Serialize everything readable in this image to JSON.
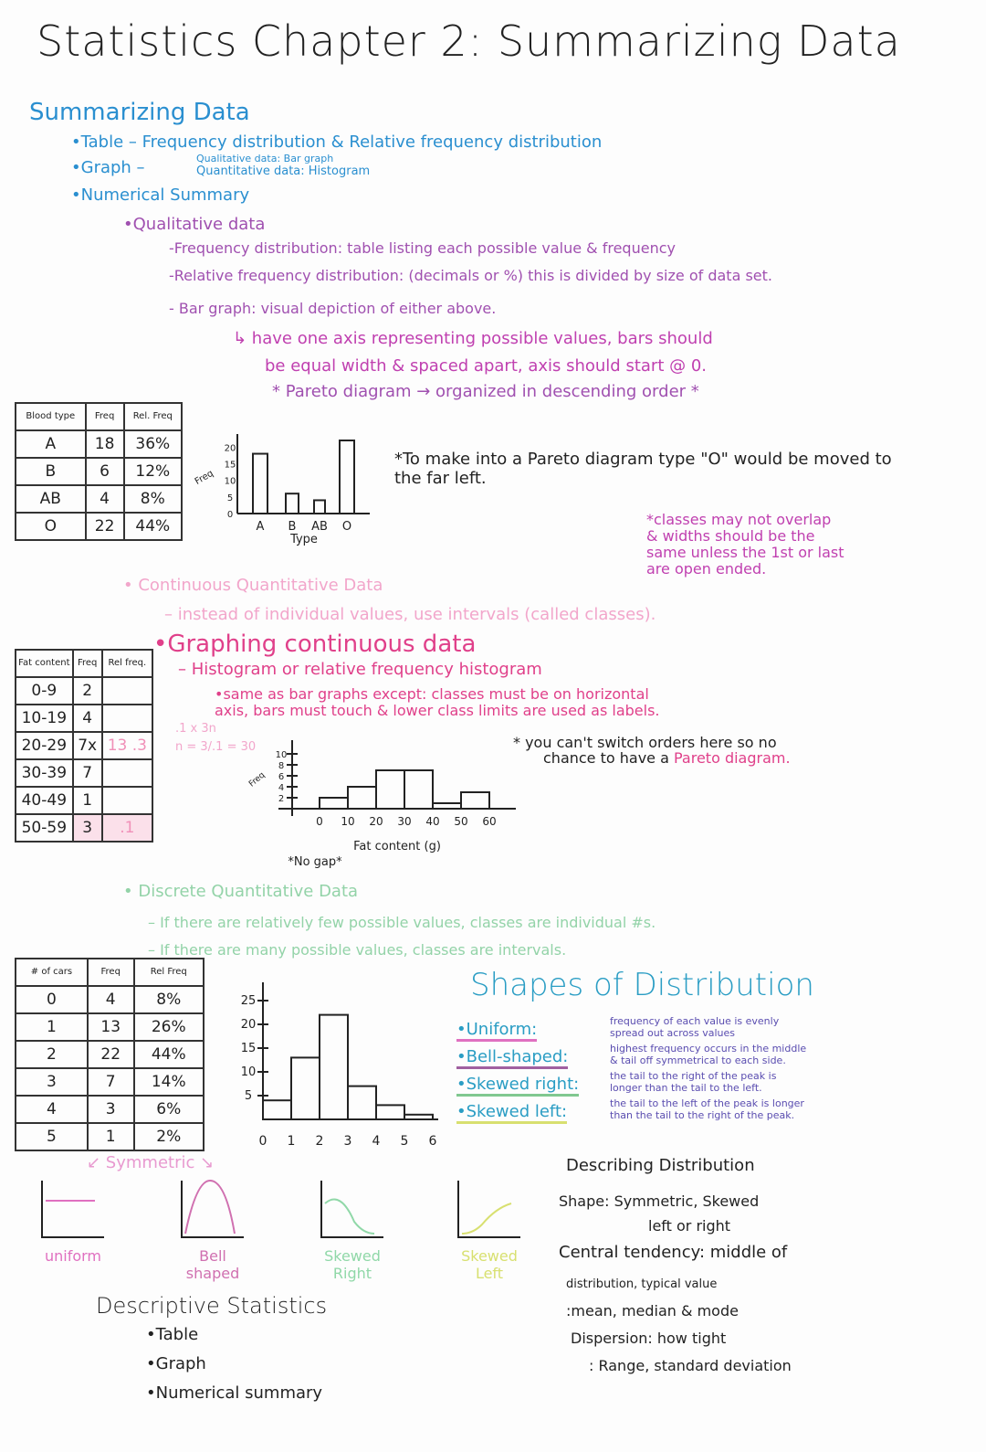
{
  "title": "Statistics Chapter 2: Summarizing Data",
  "summarizing": {
    "heading": "Summarizing Data",
    "table": "•Table – Frequency distribution & Relative frequency distribution",
    "graph": "•Graph –",
    "graph_qual": "Qualitative data: Bar graph",
    "graph_quant": "Quantitative data: Histogram",
    "numerical": "•Numerical Summary"
  },
  "qualitative": {
    "heading": "•Qualitative data",
    "freq": "-Frequency distribution: table listing each possible value & frequency",
    "rel": "-Relative frequency distribution: (decimals or %) this is divided by size of data set.",
    "bar": "- Bar graph: visual depiction of either above.",
    "note1": "↳ have one axis representing possible values, bars should",
    "note2": "be equal width & spaced apart, axis should start @ 0.",
    "pareto": "* Pareto diagram → organized in descending order *"
  },
  "blood_table": {
    "headers": [
      "Blood type",
      "Freq",
      "Rel. Freq"
    ],
    "rows": [
      [
        "A",
        "18",
        "36%"
      ],
      [
        "B",
        "6",
        "12%"
      ],
      [
        "AB",
        "4",
        "8%"
      ],
      [
        "O",
        "22",
        "44%"
      ]
    ]
  },
  "blood_chart": {
    "type": "bar",
    "categories": [
      "A",
      "B",
      "AB",
      "O"
    ],
    "values": [
      18,
      6,
      4,
      22
    ],
    "ylabel": "Freq",
    "xlabel": "Type",
    "yticks": [
      "0",
      "5",
      "10",
      "15",
      "20"
    ],
    "ylim": [
      0,
      22
    ]
  },
  "pareto_note": "*To make into a Pareto diagram type \"O\" would be moved to the far left.",
  "classes_note": [
    "*classes may not overlap",
    "& widths should be the",
    "same unless the 1st or last",
    "are open ended."
  ],
  "continuous": {
    "heading": "• Continuous Quantitative Data",
    "text": "– instead of individual values, use intervals (called classes)."
  },
  "graphing": {
    "heading": "•Graphing continuous data",
    "hist": "– Histogram or relative frequency histogram",
    "same1": "•same as bar graphs except: classes must be on horizontal",
    "same2": "axis, bars must touch & lower class limits are used as labels.",
    "calc1": ".1 x 3n",
    "calc2": "n = 3/.1 = 30",
    "switch1": "* you can't switch orders here so no",
    "switch2": "chance to have a",
    "switch_link": "Pareto diagram."
  },
  "fat_table": {
    "headers": [
      "Fat content",
      "Freq",
      "Rel freq."
    ],
    "rows": [
      [
        "0-9",
        "2",
        ""
      ],
      [
        "10-19",
        "4",
        ""
      ],
      [
        "20-29",
        "7x",
        "13 .3"
      ],
      [
        "30-39",
        "7",
        ""
      ],
      [
        "40-49",
        "1",
        ""
      ],
      [
        "50-59",
        "3",
        ".1"
      ]
    ]
  },
  "fat_chart": {
    "type": "bar",
    "categories": [
      "0",
      "10",
      "20",
      "30",
      "40",
      "50"
    ],
    "values": [
      2,
      4,
      7,
      7,
      1,
      3
    ],
    "xticks": [
      "0",
      "10",
      "20",
      "30",
      "40",
      "50",
      "60"
    ],
    "yticks": [
      "2",
      "4",
      "6",
      "8",
      "10"
    ],
    "ylabel": "Freq",
    "xlabel": "Fat content (g)",
    "ylim": [
      0,
      10
    ],
    "note": "*No gap*"
  },
  "discrete": {
    "heading": "• Discrete Quantitative Data",
    "few": "– If there are relatively few possible values, classes are individual #s.",
    "many": "– If there are many possible values, classes are intervals."
  },
  "cars_table": {
    "headers": [
      "# of cars",
      "Freq",
      "Rel Freq"
    ],
    "rows": [
      [
        "0",
        "4",
        "8%"
      ],
      [
        "1",
        "13",
        "26%"
      ],
      [
        "2",
        "22",
        "44%"
      ],
      [
        "3",
        "7",
        "14%"
      ],
      [
        "4",
        "3",
        "6%"
      ],
      [
        "5",
        "1",
        "2%"
      ]
    ]
  },
  "cars_chart": {
    "type": "bar",
    "categories": [
      "0",
      "1",
      "2",
      "3",
      "4",
      "5"
    ],
    "values": [
      4,
      13,
      22,
      7,
      3,
      1
    ],
    "xticks": [
      "0",
      "1",
      "2",
      "3",
      "4",
      "5",
      "6"
    ],
    "yticks": [
      "5",
      "10",
      "15",
      "20",
      "25"
    ],
    "ylim": [
      0,
      25
    ]
  },
  "shapes": {
    "heading": "Shapes of Distribution",
    "items": [
      {
        "name": "•Uniform:",
        "d1": "frequency of each value is evenly",
        "d2": "spread out across values",
        "color": "#e070c0"
      },
      {
        "name": "•Bell-shaped:",
        "d1": "highest frequency occurs in the middle",
        "d2": "& tail off symmetrical to each side.",
        "color": "#a060a0"
      },
      {
        "name": "•Skewed right:",
        "d1": "the tail to the right of the peak is",
        "d2": "longer than the tail to the left.",
        "color": "#80c890"
      },
      {
        "name": "•Skewed left:",
        "d1": "the tail to the left of the peak is longer",
        "d2": "than the tail to the right of the peak.",
        "color": "#d8e070"
      }
    ]
  },
  "symmetric": "↙ Symmetric ↘",
  "sketches": [
    {
      "label": "uniform",
      "color": "#e070c0"
    },
    {
      "label": "Bell shaped",
      "color": "#d070b0"
    },
    {
      "label": "Skewed Right",
      "color": "#90d8a8"
    },
    {
      "label": "Skewed Left",
      "color": "#d8e070"
    }
  ],
  "describing": {
    "heading": "Describing Distribution",
    "shape": "Shape: Symmetric, Skewed",
    "shape2": "left or right",
    "central": "Central tendency: middle of",
    "central2": "distribution, typical value",
    "central3": ":mean, median & mode",
    "dispersion": "Dispersion: how tight",
    "dispersion2": ": Range, standard deviation"
  },
  "descriptive": {
    "heading": "Descriptive   Statistics",
    "items": [
      "•Table",
      "•Graph",
      "•Numerical summary"
    ]
  }
}
